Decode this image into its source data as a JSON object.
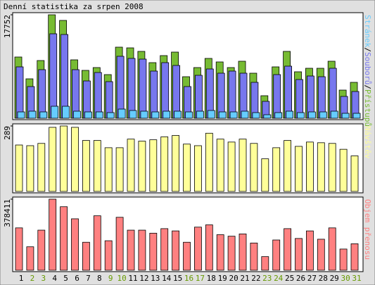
{
  "chart_data": [
    {
      "type": "bar",
      "title": "Denní statistika za srpen 2008",
      "ylim": [
        0,
        17752
      ],
      "yticks": [
        17752
      ],
      "legend_separator": "/",
      "series": [
        {
          "name": "Přístupů",
          "color": "#77bb33",
          "values": [
            10506,
            6763,
            9902,
            17752,
            16786,
            10023,
            8212,
            8695,
            7487,
            12197,
            12076,
            11472,
            9540,
            10748,
            11351,
            7125,
            8695,
            10265,
            9661,
            8695,
            9782,
            7729,
            3864,
            8815,
            11472,
            7970,
            8574,
            8574,
            9782,
            4830,
            6159
          ]
        },
        {
          "name": "Souborů",
          "color": "#7777ee",
          "values": [
            8815,
            5434,
            8332,
            14491,
            14370,
            8332,
            6400,
            7849,
            6280,
            10627,
            10265,
            10144,
            8091,
            9540,
            9057,
            5434,
            7366,
            8453,
            7729,
            8091,
            7729,
            6159,
            2898,
            7487,
            8936,
            6642,
            7246,
            7125,
            8574,
            3744,
            4589
          ]
        },
        {
          "name": "Stránek",
          "color": "#66ccff",
          "values": [
            1087,
            1208,
            1087,
            2053,
            2053,
            1208,
            1087,
            1087,
            966,
            1570,
            1329,
            1208,
            1087,
            1208,
            1208,
            1087,
            1208,
            1329,
            1087,
            1087,
            1208,
            966,
            604,
            966,
            1208,
            966,
            1087,
            1087,
            1208,
            845,
            845
          ]
        }
      ]
    },
    {
      "type": "bar",
      "ylim": [
        0,
        289
      ],
      "yticks": [
        289
      ],
      "series": [
        {
          "name": "Návštěv",
          "color": "#ffff99",
          "values": [
            205,
            202,
            212,
            283,
            289,
            283,
            225,
            225,
            193,
            193,
            231,
            222,
            228,
            241,
            247,
            209,
            202,
            257,
            231,
            218,
            231,
            212,
            144,
            193,
            225,
            199,
            218,
            215,
            212,
            186,
            157
          ]
        }
      ]
    },
    {
      "type": "bar",
      "ylim": [
        0,
        378411
      ],
      "yticks": [
        378411
      ],
      "categories": [
        "1",
        "2",
        "3",
        "4",
        "5",
        "6",
        "7",
        "8",
        "9",
        "10",
        "11",
        "12",
        "13",
        "14",
        "15",
        "16",
        "17",
        "18",
        "19",
        "20",
        "21",
        "22",
        "23",
        "24",
        "25",
        "26",
        "27",
        "28",
        "29",
        "30",
        "31"
      ],
      "category_colors": [
        "#000000",
        "#669900",
        "#669900",
        "#000000",
        "#000000",
        "#000000",
        "#000000",
        "#000000",
        "#669900",
        "#669900",
        "#000000",
        "#000000",
        "#000000",
        "#000000",
        "#000000",
        "#669900",
        "#669900",
        "#000000",
        "#000000",
        "#000000",
        "#000000",
        "#000000",
        "#669900",
        "#669900",
        "#000000",
        "#000000",
        "#000000",
        "#000000",
        "#000000",
        "#669900",
        "#669900"
      ],
      "series": [
        {
          "name": "Objem přenosu",
          "color": "#ff8080",
          "values": [
            225456,
            124806,
            213378,
            378411,
            338184,
            273768,
            148962,
            289872,
            157014,
            281820,
            213378,
            213378,
            197274,
            221430,
            209352,
            148962,
            229482,
            241560,
            189222,
            181170,
            193248,
            144936,
            72468,
            161040,
            221430,
            169092,
            209352,
            165066,
            225456,
            112728,
            140910
          ]
        }
      ]
    }
  ]
}
